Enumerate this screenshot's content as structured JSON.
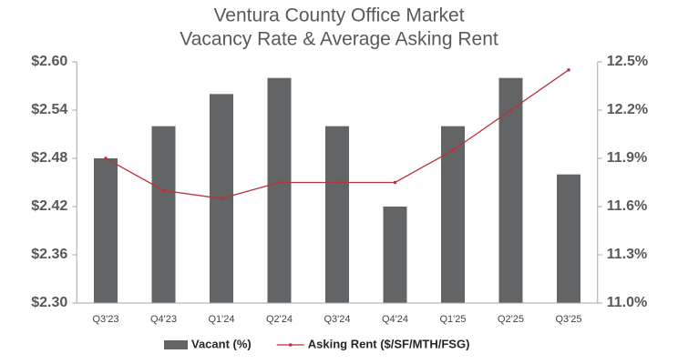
{
  "chart_data": {
    "type": "bar_line",
    "title": "Ventura County Office Market",
    "subtitle": "Vacancy Rate & Average Asking Rent",
    "categories": [
      "Q3'23",
      "Q4'23",
      "Q1'24",
      "Q2'24",
      "Q3'24",
      "Q4'24",
      "Q1'25",
      "Q2'25",
      "Q3'25"
    ],
    "series": [
      {
        "name": "Vacant (%)",
        "type": "bar",
        "axis": "y2",
        "color": "#636466",
        "values": [
          11.9,
          12.1,
          12.3,
          12.4,
          12.1,
          11.6,
          12.1,
          12.4,
          11.8
        ]
      },
      {
        "name": "Asking Rent ($/SF/MTH/FSG)",
        "type": "line",
        "axis": "y",
        "color": "#b8323a",
        "values": [
          2.48,
          2.44,
          2.43,
          2.45,
          2.45,
          2.45,
          2.49,
          2.54,
          2.59
        ]
      }
    ],
    "ylim": [
      2.3,
      2.6
    ],
    "yticks": [
      {
        "value": 2.3,
        "label": "$2.30"
      },
      {
        "value": 2.36,
        "label": "$2.36"
      },
      {
        "value": 2.42,
        "label": "$2.42"
      },
      {
        "value": 2.48,
        "label": "$2.48"
      },
      {
        "value": 2.54,
        "label": "$2.54"
      },
      {
        "value": 2.6,
        "label": "$2.60"
      }
    ],
    "y2lim": [
      11.0,
      12.5
    ],
    "y2ticks": [
      {
        "value": 11.0,
        "label": "11.0%"
      },
      {
        "value": 11.3,
        "label": "11.3%"
      },
      {
        "value": 11.6,
        "label": "11.6%"
      },
      {
        "value": 11.9,
        "label": "11.9%"
      },
      {
        "value": 12.2,
        "label": "12.2%"
      },
      {
        "value": 12.5,
        "label": "12.5%"
      }
    ],
    "legend": "bottom"
  }
}
